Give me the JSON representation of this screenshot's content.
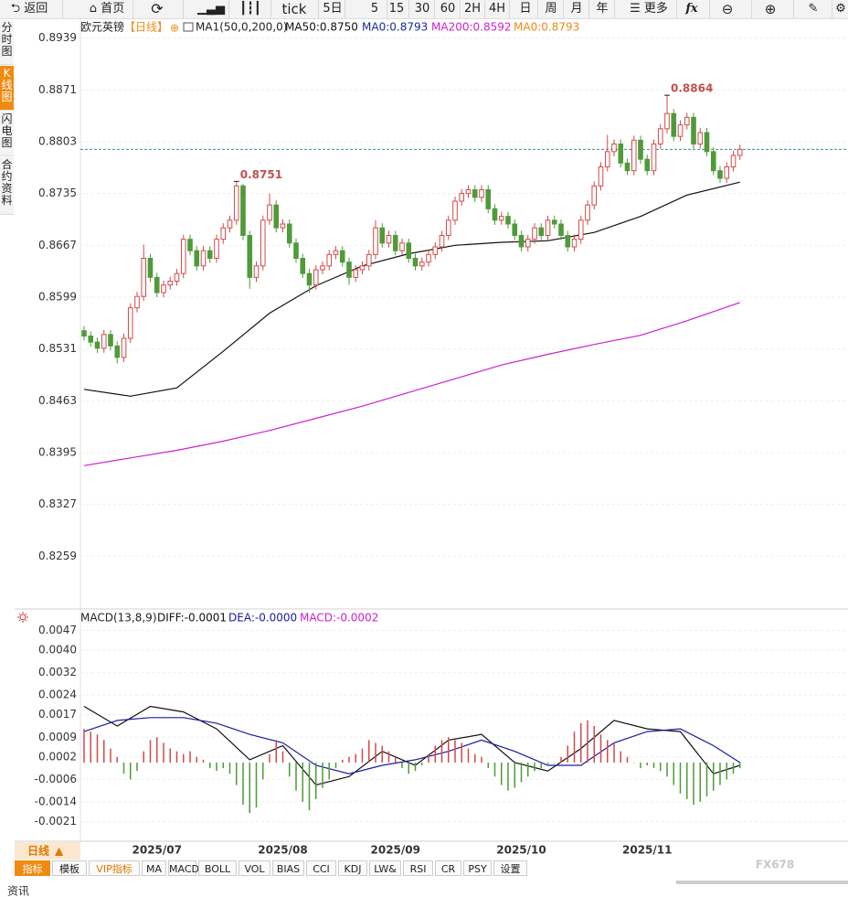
{
  "toolbar": {
    "back": "返回",
    "home": "首页",
    "tick": "tick",
    "periods": [
      "5日",
      "5",
      "15",
      "30",
      "60",
      "2H",
      "4H",
      "日",
      "周",
      "月",
      "年"
    ],
    "more": "更多",
    "formula": "fx"
  },
  "side_tabs": [
    "分时图",
    "K线图",
    "闪电图",
    "合约资料"
  ],
  "chart_data": [
    {
      "type": "candlestick",
      "title": "欧元英镑",
      "period": "【日线】",
      "indicator": "MA1(50,0,200,0)",
      "open": [
        0.8555,
        0.8548,
        0.854,
        0.8532,
        0.855,
        0.8535,
        0.852,
        0.8545,
        0.8585,
        0.86,
        0.865,
        0.8625,
        0.8605,
        0.8615,
        0.862,
        0.863,
        0.8675,
        0.866,
        0.864,
        0.866,
        0.865,
        0.8675,
        0.869,
        0.87,
        0.8745,
        0.868,
        0.8625,
        0.864,
        0.87,
        0.872,
        0.869,
        0.8695,
        0.867,
        0.865,
        0.863,
        0.8615,
        0.8635,
        0.864,
        0.8655,
        0.866,
        0.8645,
        0.8625,
        0.8635,
        0.864,
        0.8655,
        0.869,
        0.867,
        0.868,
        0.866,
        0.867,
        0.865,
        0.864,
        0.8645,
        0.8655,
        0.8665,
        0.868,
        0.87,
        0.8725,
        0.8735,
        0.874,
        0.873,
        0.874,
        0.8715,
        0.87,
        0.8705,
        0.8695,
        0.868,
        0.8665,
        0.8675,
        0.869,
        0.868,
        0.87,
        0.8695,
        0.868,
        0.8665,
        0.8675,
        0.87,
        0.872,
        0.8745,
        0.877,
        0.879,
        0.88,
        0.8775,
        0.8765,
        0.8805,
        0.878,
        0.8765,
        0.88,
        0.882,
        0.884,
        0.881,
        0.8825,
        0.8835,
        0.88,
        0.8815,
        0.879,
        0.8765,
        0.8755,
        0.877,
        0.8785
      ],
      "high": [
        0.8561,
        0.8554,
        0.8546,
        0.8556,
        0.8556,
        0.8541,
        0.8551,
        0.8591,
        0.8606,
        0.8668,
        0.8656,
        0.8631,
        0.8621,
        0.8626,
        0.8636,
        0.8681,
        0.8681,
        0.8666,
        0.8666,
        0.8666,
        0.8681,
        0.8696,
        0.8706,
        0.8751,
        0.8748,
        0.8686,
        0.8646,
        0.8706,
        0.8735,
        0.8726,
        0.8701,
        0.8701,
        0.8676,
        0.8656,
        0.8636,
        0.8641,
        0.8646,
        0.8661,
        0.8666,
        0.8666,
        0.8651,
        0.8641,
        0.8646,
        0.8661,
        0.87,
        0.8696,
        0.8686,
        0.8686,
        0.8676,
        0.8676,
        0.8656,
        0.8651,
        0.8661,
        0.8671,
        0.8686,
        0.8706,
        0.8731,
        0.8741,
        0.8746,
        0.8746,
        0.8746,
        0.8746,
        0.8721,
        0.8711,
        0.8711,
        0.8701,
        0.8686,
        0.8681,
        0.8696,
        0.8696,
        0.8706,
        0.8706,
        0.8701,
        0.8686,
        0.8681,
        0.8706,
        0.8726,
        0.8751,
        0.8776,
        0.8812,
        0.8806,
        0.8806,
        0.8781,
        0.8811,
        0.8811,
        0.8786,
        0.8806,
        0.8826,
        0.8864,
        0.8846,
        0.8831,
        0.8841,
        0.8841,
        0.8821,
        0.8821,
        0.8796,
        0.8771,
        0.8776,
        0.8791,
        0.8799
      ],
      "low": [
        0.8542,
        0.8534,
        0.8526,
        0.8526,
        0.8529,
        0.8512,
        0.8514,
        0.8539,
        0.8579,
        0.8594,
        0.8619,
        0.8599,
        0.8599,
        0.8609,
        0.8614,
        0.8624,
        0.8654,
        0.8634,
        0.8634,
        0.8644,
        0.8644,
        0.8669,
        0.8684,
        0.8694,
        0.8674,
        0.861,
        0.8619,
        0.8634,
        0.8694,
        0.8684,
        0.8684,
        0.8664,
        0.8644,
        0.8624,
        0.8605,
        0.8609,
        0.8629,
        0.8634,
        0.8649,
        0.8639,
        0.8615,
        0.8619,
        0.8629,
        0.8634,
        0.8649,
        0.8664,
        0.8664,
        0.8654,
        0.8654,
        0.8644,
        0.8634,
        0.8634,
        0.8639,
        0.8649,
        0.8659,
        0.8674,
        0.8694,
        0.8719,
        0.8729,
        0.8724,
        0.8724,
        0.8709,
        0.8694,
        0.8694,
        0.8689,
        0.8674,
        0.8659,
        0.8659,
        0.8669,
        0.8674,
        0.8674,
        0.8689,
        0.8674,
        0.8659,
        0.8659,
        0.8669,
        0.8694,
        0.8714,
        0.8739,
        0.8764,
        0.8784,
        0.8769,
        0.8759,
        0.8759,
        0.8774,
        0.8759,
        0.8759,
        0.8794,
        0.8814,
        0.8804,
        0.8804,
        0.8819,
        0.8794,
        0.8794,
        0.8784,
        0.8759,
        0.8749,
        0.8749,
        0.8764,
        0.8779
      ],
      "close": [
        0.8548,
        0.854,
        0.8532,
        0.855,
        0.8535,
        0.852,
        0.8545,
        0.8585,
        0.86,
        0.865,
        0.8625,
        0.8605,
        0.8615,
        0.862,
        0.863,
        0.8675,
        0.866,
        0.864,
        0.866,
        0.865,
        0.8675,
        0.869,
        0.87,
        0.8745,
        0.868,
        0.8625,
        0.864,
        0.87,
        0.872,
        0.869,
        0.8695,
        0.867,
        0.865,
        0.863,
        0.8615,
        0.8635,
        0.864,
        0.8655,
        0.866,
        0.8645,
        0.8625,
        0.8635,
        0.864,
        0.8655,
        0.869,
        0.867,
        0.868,
        0.866,
        0.867,
        0.865,
        0.864,
        0.8645,
        0.8655,
        0.8665,
        0.868,
        0.87,
        0.8725,
        0.8735,
        0.874,
        0.873,
        0.874,
        0.8715,
        0.87,
        0.8705,
        0.8695,
        0.868,
        0.8665,
        0.8675,
        0.869,
        0.868,
        0.87,
        0.8695,
        0.868,
        0.8665,
        0.8675,
        0.87,
        0.872,
        0.8745,
        0.877,
        0.879,
        0.88,
        0.8775,
        0.8765,
        0.8805,
        0.878,
        0.8765,
        0.88,
        0.882,
        0.884,
        0.881,
        0.8825,
        0.8835,
        0.88,
        0.8815,
        0.879,
        0.8765,
        0.8755,
        0.877,
        0.8785,
        0.8793
      ],
      "up_color": "#d24a4a",
      "down_color": "#4f9a3a",
      "series": [
        {
          "name": "MA50:0.8750",
          "color": "#111111",
          "x": [
            0,
            7,
            14,
            21,
            28,
            35,
            42,
            49,
            56,
            63,
            70,
            77,
            84,
            91,
            99
          ],
          "values": [
            0.8478,
            0.8469,
            0.848,
            0.8528,
            0.8578,
            0.8614,
            0.864,
            0.8656,
            0.8667,
            0.8671,
            0.8673,
            0.8684,
            0.8705,
            0.8733,
            0.875
          ]
        },
        {
          "name": "MA0:0.8793",
          "color": "#1a2a9a"
        },
        {
          "name": "MA200:0.8592",
          "color": "#d020d0",
          "x": [
            0,
            7,
            14,
            21,
            28,
            35,
            42,
            49,
            56,
            63,
            70,
            77,
            84,
            91,
            99
          ],
          "values": [
            0.8378,
            0.8388,
            0.8398,
            0.841,
            0.8424,
            0.844,
            0.8456,
            0.8474,
            0.8492,
            0.851,
            0.8524,
            0.8537,
            0.8549,
            0.8568,
            0.8592
          ]
        },
        {
          "name": "MA0:0.8793",
          "color": "#f08a10"
        }
      ],
      "last_price": 0.8793,
      "ylim": [
        0.8191,
        0.8965
      ],
      "yticks": [
        0.8939,
        0.8871,
        0.8803,
        0.8735,
        0.8667,
        0.8599,
        0.8531,
        0.8463,
        0.8395,
        0.8327,
        0.8259
      ],
      "grid": true
    },
    {
      "type": "macd",
      "title": "MACD(13,8,9)",
      "categories": [
        null,
        null,
        null,
        null,
        null,
        null,
        null,
        null,
        null,
        null,
        null,
        "2025/07",
        null,
        null,
        null,
        null,
        null,
        null,
        null,
        null,
        null,
        null,
        null,
        null,
        null,
        null,
        null,
        null,
        null,
        null,
        "2025/08",
        null,
        null,
        null,
        null,
        null,
        null,
        null,
        null,
        null,
        null,
        null,
        null,
        null,
        null,
        null,
        null,
        "2025/09",
        null,
        null,
        null,
        null,
        null,
        null,
        null,
        null,
        null,
        null,
        null,
        null,
        null,
        null,
        null,
        null,
        null,
        null,
        "2025/10",
        null,
        null,
        null,
        null,
        null,
        null,
        null,
        null,
        null,
        null,
        null,
        null,
        null,
        null,
        null,
        null,
        null,
        null,
        "2025/11",
        null,
        null,
        null,
        null,
        null,
        null,
        null,
        null,
        null,
        null,
        null,
        null,
        null,
        null
      ],
      "series": [
        {
          "name": "DIFF:-0.0001",
          "color": "#111111",
          "x": [
            0,
            5,
            10,
            15,
            20,
            25,
            30,
            35,
            40,
            45,
            50,
            55,
            60,
            65,
            70,
            75,
            80,
            85,
            90,
            95,
            99
          ],
          "values": [
            0.002,
            0.0013,
            0.002,
            0.0018,
            0.0012,
            0.0001,
            0.0006,
            -0.0008,
            -0.0005,
            0.0004,
            -0.0001,
            0.0008,
            0.001,
            0.0,
            -0.0003,
            0.0005,
            0.0015,
            0.0012,
            0.0011,
            -0.0004,
            -0.0001
          ]
        },
        {
          "name": "DEA:-0.0000",
          "color": "#1a1aa0",
          "x": [
            0,
            5,
            10,
            15,
            20,
            25,
            30,
            35,
            40,
            45,
            50,
            55,
            60,
            65,
            70,
            75,
            80,
            85,
            90,
            95,
            99
          ],
          "values": [
            0.0011,
            0.0015,
            0.0016,
            0.0016,
            0.0014,
            0.001,
            0.0007,
            -0.0001,
            -0.0004,
            -0.0001,
            0.0001,
            0.0004,
            0.0008,
            0.0004,
            -0.0001,
            -0.0001,
            0.0007,
            0.0011,
            0.0012,
            0.0006,
            0.0
          ]
        },
        {
          "name": "MACD:-0.0002",
          "color": "#d020d0",
          "values": [
            0.0012,
            0.0011,
            0.001,
            0.0008,
            0.0005,
            0.0002,
            -0.0004,
            -0.0006,
            -0.0003,
            0.0004,
            0.0008,
            0.0009,
            0.0007,
            0.0005,
            0.0004,
            0.0003,
            0.0004,
            0.0002,
            0.0001,
            -0.0002,
            -0.0003,
            -0.0002,
            -0.0004,
            -0.0008,
            -0.0015,
            -0.0018,
            -0.0016,
            -0.0006,
            0.0003,
            0.0008,
            0.0004,
            -0.0005,
            -0.001,
            -0.0014,
            -0.0017,
            -0.0013,
            -0.0009,
            -0.0006,
            -0.0002,
            0.0001,
            0.0002,
            0.0003,
            0.0005,
            0.0008,
            0.0007,
            0.0006,
            0.0004,
            0.0002,
            -0.0002,
            -0.0004,
            -0.0003,
            -0.0001,
            0.0003,
            0.0006,
            0.0008,
            0.0009,
            0.0008,
            0.0007,
            0.0005,
            0.0003,
            0.0002,
            -0.0002,
            -0.0005,
            -0.0008,
            -0.001,
            -0.0009,
            -0.0007,
            -0.0005,
            -0.0003,
            -0.0002,
            -0.0001,
            0.0,
            0.0002,
            0.0006,
            0.0011,
            0.0014,
            0.0015,
            0.0013,
            0.001,
            0.0008,
            0.0007,
            0.0004,
            0.0002,
            0.0,
            -0.0002,
            -0.0001,
            -0.0002,
            -0.0003,
            -0.0005,
            -0.0008,
            -0.0011,
            -0.0013,
            -0.0015,
            -0.0014,
            -0.0012,
            -0.001,
            -0.0008,
            -0.0006,
            -0.0004,
            -0.0002
          ]
        }
      ],
      "up_color": "#d24a4a",
      "down_color": "#4f9a3a",
      "ylim": [
        -0.0028,
        0.0054
      ],
      "yticks": [
        0.0047,
        {
          "value": 0.004,
          "label": "0.0040"
        },
        0.0032,
        0.0024,
        0.0017,
        0.0009,
        0.0002,
        -0.0006,
        -0.0014,
        -0.0021
      ],
      "grid": true
    }
  ],
  "bottom_bar": {
    "period": "日线",
    "tabs": [
      "指标",
      "模板",
      "VIP指标",
      "MA",
      "MACD",
      "BOLL",
      "VOL",
      "BIAS",
      "CCI",
      "KDJ",
      "LW&",
      "RSI",
      "CR",
      "PSY",
      "设置"
    ]
  },
  "watermark": "FX678",
  "footer": "资讯"
}
